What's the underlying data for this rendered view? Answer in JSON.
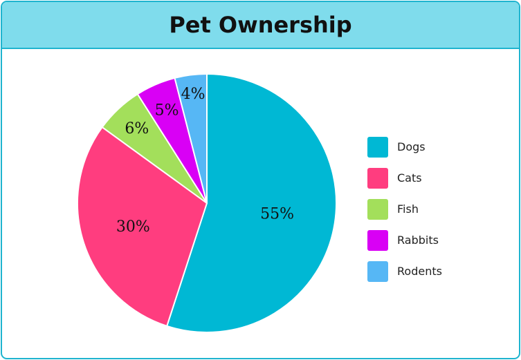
{
  "chart_data": {
    "type": "pie",
    "title": "Pet Ownership",
    "slices": [
      {
        "label": "Dogs",
        "value": 55,
        "display": "55%",
        "color": "#00b8d4"
      },
      {
        "label": "Cats",
        "value": 30,
        "display": "30%",
        "color": "#ff3d7f"
      },
      {
        "label": "Fish",
        "value": 6,
        "display": "6%",
        "color": "#a3df5b"
      },
      {
        "label": "Rabbits",
        "value": 5,
        "display": "5%",
        "color": "#d900f5"
      },
      {
        "label": "Rodents",
        "value": 4,
        "display": "4%",
        "color": "#56b7f5"
      }
    ],
    "legend_position": "right"
  },
  "colors": {
    "title_background": "#7fdcec",
    "border": "#1eb4cf"
  }
}
